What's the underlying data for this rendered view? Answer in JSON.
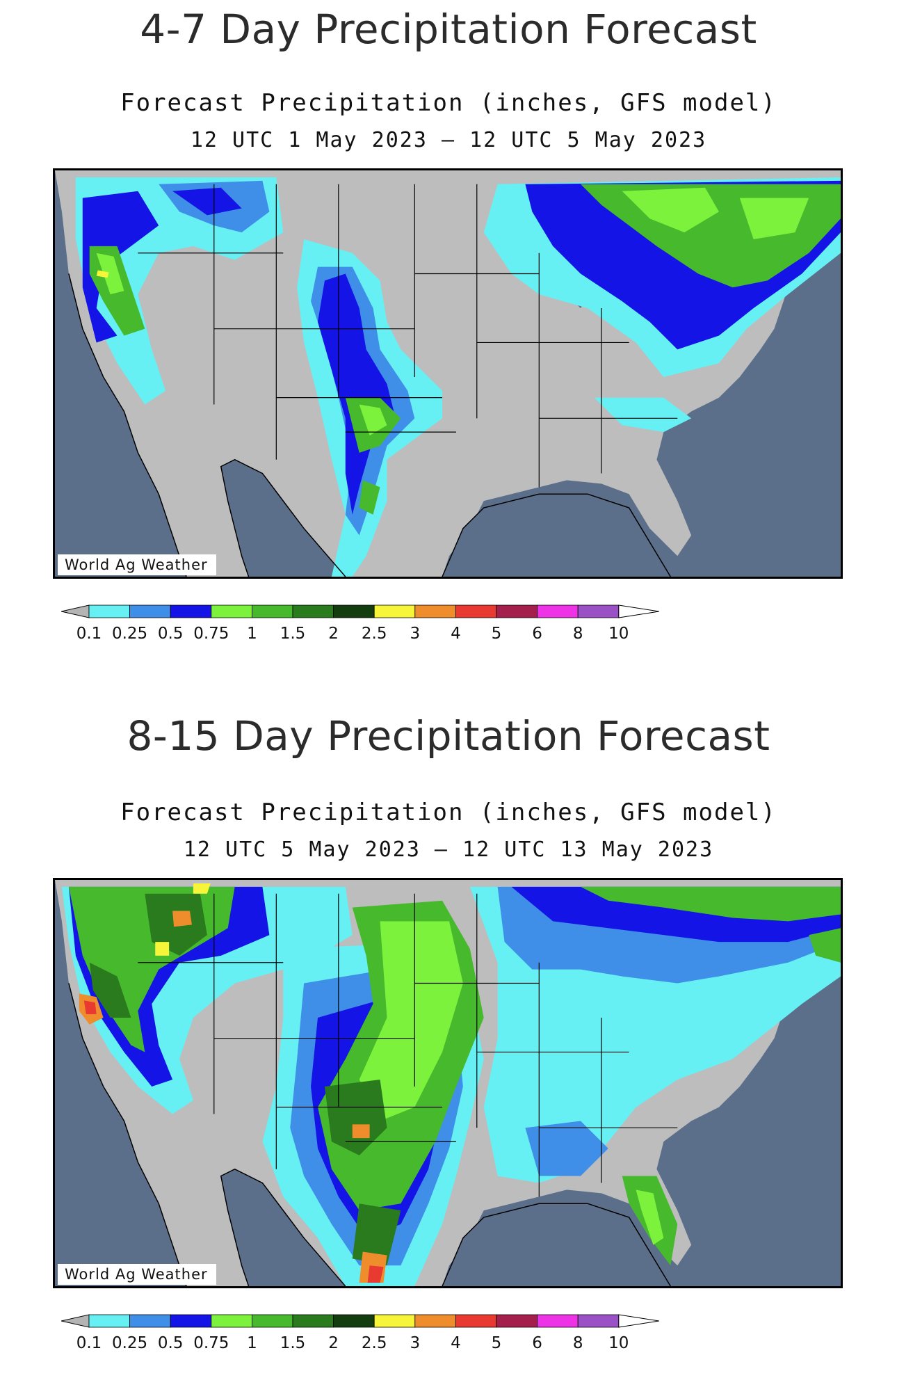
{
  "panels": [
    {
      "heading": "4-7 Day Precipitation Forecast",
      "subtitle": "Forecast Precipitation (inches, GFS model)",
      "period": "12 UTC 1 May 2023 – 12 UTC 5 May 2023",
      "credit": "World Ag Weather"
    },
    {
      "heading": "8-15 Day Precipitation Forecast",
      "subtitle": "Forecast Precipitation (inches, GFS model)",
      "period": "12 UTC 5 May 2023 – 12 UTC 13 May 2023",
      "credit": "World Ag Weather"
    }
  ],
  "legend": {
    "ticks": [
      "0.1",
      "0.25",
      "0.5",
      "0.75",
      "1",
      "1.5",
      "2",
      "2.5",
      "3",
      "4",
      "5",
      "6",
      "8",
      "10"
    ],
    "colors": [
      "#b4b4b4",
      "#66f0f4",
      "#3f8fe8",
      "#1414e6",
      "#7df23c",
      "#47b92d",
      "#2a7a1e",
      "#143d0f",
      "#f7f53a",
      "#ef8d2c",
      "#e83a30",
      "#a51f4c",
      "#ee32e6",
      "#9b51c6",
      "#ffffff"
    ]
  },
  "map_colors": {
    "ocean": "#5b6f8a",
    "land": "#bdbdbd",
    "cyan": "#66f0f4",
    "light_blue": "#3f8fe8",
    "blue": "#1414e6",
    "light_green": "#7df23c",
    "green": "#47b92d",
    "dark_green": "#2a7a1e",
    "yellow": "#f7f53a",
    "orange": "#ef8d2c",
    "red": "#e83a30"
  }
}
